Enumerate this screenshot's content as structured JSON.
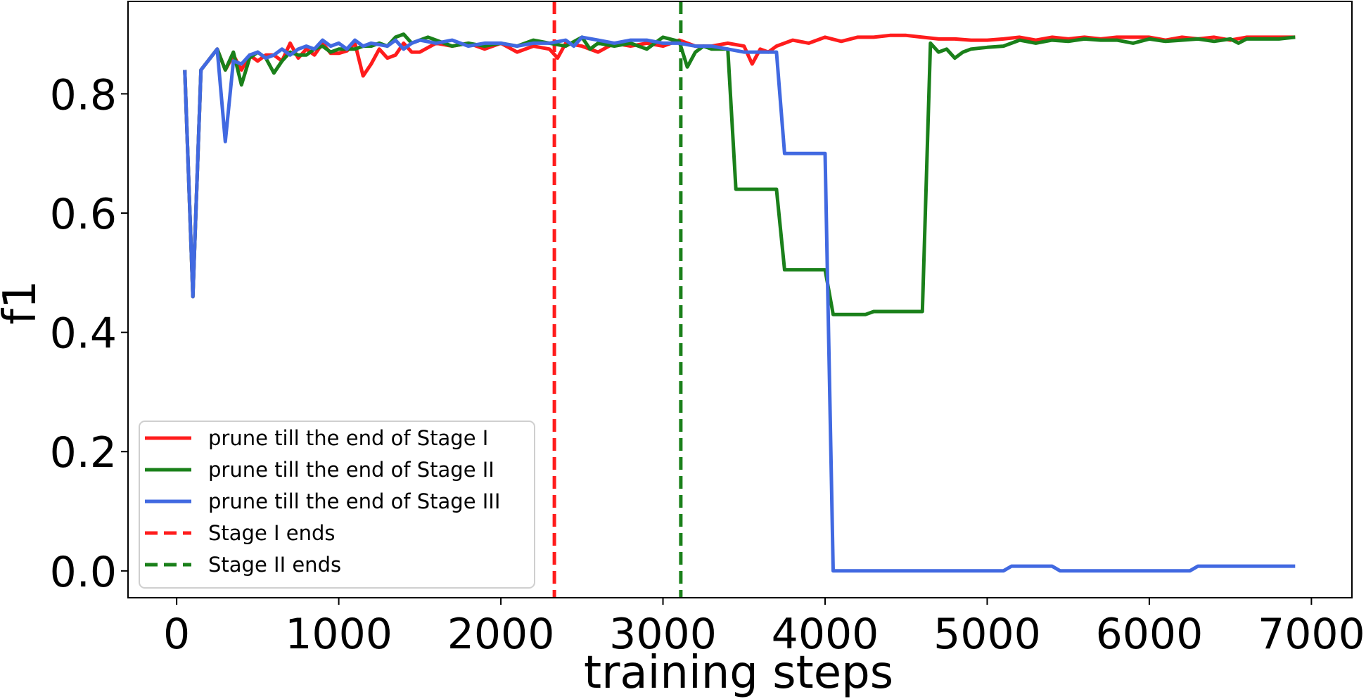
{
  "chart_data": {
    "type": "line",
    "xlabel": "training steps",
    "ylabel": "f1",
    "xlim": [
      -300,
      7250
    ],
    "ylim": [
      -0.045,
      0.955
    ],
    "xticks": [
      0,
      1000,
      2000,
      3000,
      4000,
      5000,
      6000,
      7000
    ],
    "xtick_labels": [
      "0",
      "1000",
      "2000",
      "3000",
      "4000",
      "5000",
      "6000",
      "7000"
    ],
    "yticks": [
      0.0,
      0.2,
      0.4,
      0.6,
      0.8
    ],
    "ytick_labels": [
      "0.0",
      "0.2",
      "0.4",
      "0.6",
      "0.8"
    ],
    "grid": false,
    "legend_position": "lower-left",
    "series": [
      {
        "name": "prune till the end of Stage I",
        "color": "#ff1c1c",
        "style": "solid",
        "points": [
          [
            50,
            0.84
          ],
          [
            100,
            0.46
          ],
          [
            150,
            0.84
          ],
          [
            250,
            0.875
          ],
          [
            300,
            0.84
          ],
          [
            350,
            0.865
          ],
          [
            400,
            0.84
          ],
          [
            450,
            0.865
          ],
          [
            500,
            0.855
          ],
          [
            550,
            0.865
          ],
          [
            600,
            0.865
          ],
          [
            650,
            0.855
          ],
          [
            700,
            0.885
          ],
          [
            750,
            0.86
          ],
          [
            800,
            0.875
          ],
          [
            850,
            0.865
          ],
          [
            900,
            0.885
          ],
          [
            950,
            0.868
          ],
          [
            1000,
            0.868
          ],
          [
            1050,
            0.872
          ],
          [
            1100,
            0.885
          ],
          [
            1150,
            0.83
          ],
          [
            1200,
            0.85
          ],
          [
            1250,
            0.875
          ],
          [
            1300,
            0.86
          ],
          [
            1350,
            0.865
          ],
          [
            1400,
            0.885
          ],
          [
            1450,
            0.87
          ],
          [
            1500,
            0.87
          ],
          [
            1600,
            0.885
          ],
          [
            1700,
            0.88
          ],
          [
            1800,
            0.885
          ],
          [
            1900,
            0.875
          ],
          [
            2000,
            0.885
          ],
          [
            2100,
            0.87
          ],
          [
            2200,
            0.88
          ],
          [
            2300,
            0.875
          ],
          [
            2350,
            0.86
          ],
          [
            2400,
            0.885
          ],
          [
            2500,
            0.88
          ],
          [
            2600,
            0.87
          ],
          [
            2700,
            0.885
          ],
          [
            2800,
            0.88
          ],
          [
            2900,
            0.885
          ],
          [
            3000,
            0.88
          ],
          [
            3100,
            0.89
          ],
          [
            3200,
            0.88
          ],
          [
            3300,
            0.88
          ],
          [
            3400,
            0.885
          ],
          [
            3500,
            0.88
          ],
          [
            3550,
            0.85
          ],
          [
            3600,
            0.875
          ],
          [
            3650,
            0.87
          ],
          [
            3700,
            0.88
          ],
          [
            3800,
            0.89
          ],
          [
            3900,
            0.885
          ],
          [
            4000,
            0.895
          ],
          [
            4100,
            0.888
          ],
          [
            4200,
            0.895
          ],
          [
            4300,
            0.895
          ],
          [
            4400,
            0.898
          ],
          [
            4500,
            0.898
          ],
          [
            4600,
            0.895
          ],
          [
            4700,
            0.892
          ],
          [
            4800,
            0.892
          ],
          [
            4900,
            0.89
          ],
          [
            5000,
            0.89
          ],
          [
            5100,
            0.892
          ],
          [
            5200,
            0.895
          ],
          [
            5300,
            0.89
          ],
          [
            5400,
            0.895
          ],
          [
            5500,
            0.892
          ],
          [
            5600,
            0.895
          ],
          [
            5700,
            0.892
          ],
          [
            5800,
            0.895
          ],
          [
            5900,
            0.895
          ],
          [
            6000,
            0.895
          ],
          [
            6100,
            0.89
          ],
          [
            6200,
            0.895
          ],
          [
            6300,
            0.892
          ],
          [
            6400,
            0.895
          ],
          [
            6500,
            0.89
          ],
          [
            6600,
            0.895
          ],
          [
            6700,
            0.895
          ],
          [
            6800,
            0.895
          ],
          [
            6900,
            0.895
          ]
        ]
      },
      {
        "name": "prune till the end of Stage II",
        "color": "#1a801a",
        "style": "solid",
        "points": [
          [
            50,
            0.84
          ],
          [
            100,
            0.46
          ],
          [
            150,
            0.84
          ],
          [
            250,
            0.875
          ],
          [
            300,
            0.84
          ],
          [
            350,
            0.87
          ],
          [
            400,
            0.815
          ],
          [
            450,
            0.86
          ],
          [
            500,
            0.87
          ],
          [
            550,
            0.86
          ],
          [
            600,
            0.835
          ],
          [
            650,
            0.855
          ],
          [
            700,
            0.87
          ],
          [
            750,
            0.865
          ],
          [
            800,
            0.865
          ],
          [
            850,
            0.875
          ],
          [
            900,
            0.88
          ],
          [
            950,
            0.87
          ],
          [
            1000,
            0.875
          ],
          [
            1100,
            0.875
          ],
          [
            1150,
            0.88
          ],
          [
            1200,
            0.88
          ],
          [
            1250,
            0.885
          ],
          [
            1300,
            0.88
          ],
          [
            1350,
            0.895
          ],
          [
            1400,
            0.9
          ],
          [
            1450,
            0.885
          ],
          [
            1500,
            0.89
          ],
          [
            1550,
            0.895
          ],
          [
            1600,
            0.89
          ],
          [
            1700,
            0.88
          ],
          [
            1800,
            0.885
          ],
          [
            1900,
            0.88
          ],
          [
            2000,
            0.885
          ],
          [
            2100,
            0.88
          ],
          [
            2200,
            0.89
          ],
          [
            2300,
            0.885
          ],
          [
            2400,
            0.88
          ],
          [
            2500,
            0.895
          ],
          [
            2550,
            0.875
          ],
          [
            2600,
            0.885
          ],
          [
            2700,
            0.88
          ],
          [
            2800,
            0.885
          ],
          [
            2900,
            0.875
          ],
          [
            3000,
            0.895
          ],
          [
            3100,
            0.888
          ],
          [
            3150,
            0.845
          ],
          [
            3200,
            0.87
          ],
          [
            3250,
            0.88
          ],
          [
            3300,
            0.875
          ],
          [
            3400,
            0.875
          ],
          [
            3450,
            0.64
          ],
          [
            3700,
            0.64
          ],
          [
            3750,
            0.505
          ],
          [
            4000,
            0.505
          ],
          [
            4050,
            0.43
          ],
          [
            4250,
            0.43
          ],
          [
            4300,
            0.435
          ],
          [
            4600,
            0.435
          ],
          [
            4650,
            0.885
          ],
          [
            4700,
            0.87
          ],
          [
            4750,
            0.875
          ],
          [
            4800,
            0.86
          ],
          [
            4850,
            0.87
          ],
          [
            4900,
            0.875
          ],
          [
            5000,
            0.878
          ],
          [
            5100,
            0.88
          ],
          [
            5200,
            0.89
          ],
          [
            5300,
            0.885
          ],
          [
            5400,
            0.89
          ],
          [
            5500,
            0.888
          ],
          [
            5600,
            0.892
          ],
          [
            5700,
            0.89
          ],
          [
            5800,
            0.89
          ],
          [
            5900,
            0.885
          ],
          [
            6000,
            0.892
          ],
          [
            6100,
            0.888
          ],
          [
            6200,
            0.89
          ],
          [
            6300,
            0.892
          ],
          [
            6400,
            0.888
          ],
          [
            6500,
            0.892
          ],
          [
            6550,
            0.885
          ],
          [
            6600,
            0.892
          ],
          [
            6700,
            0.892
          ],
          [
            6800,
            0.892
          ],
          [
            6900,
            0.895
          ]
        ]
      },
      {
        "name": "prune till the end of Stage III",
        "color": "#4169e1",
        "style": "solid",
        "points": [
          [
            50,
            0.84
          ],
          [
            100,
            0.46
          ],
          [
            150,
            0.84
          ],
          [
            250,
            0.875
          ],
          [
            300,
            0.72
          ],
          [
            350,
            0.855
          ],
          [
            400,
            0.85
          ],
          [
            450,
            0.865
          ],
          [
            500,
            0.87
          ],
          [
            550,
            0.86
          ],
          [
            600,
            0.865
          ],
          [
            650,
            0.875
          ],
          [
            700,
            0.865
          ],
          [
            750,
            0.875
          ],
          [
            800,
            0.88
          ],
          [
            850,
            0.875
          ],
          [
            900,
            0.89
          ],
          [
            950,
            0.88
          ],
          [
            1000,
            0.885
          ],
          [
            1050,
            0.875
          ],
          [
            1100,
            0.89
          ],
          [
            1150,
            0.88
          ],
          [
            1200,
            0.885
          ],
          [
            1300,
            0.88
          ],
          [
            1350,
            0.89
          ],
          [
            1400,
            0.875
          ],
          [
            1450,
            0.885
          ],
          [
            1500,
            0.89
          ],
          [
            1600,
            0.885
          ],
          [
            1700,
            0.89
          ],
          [
            1800,
            0.88
          ],
          [
            1900,
            0.885
          ],
          [
            2000,
            0.885
          ],
          [
            2100,
            0.88
          ],
          [
            2200,
            0.885
          ],
          [
            2300,
            0.885
          ],
          [
            2400,
            0.89
          ],
          [
            2450,
            0.88
          ],
          [
            2500,
            0.895
          ],
          [
            2600,
            0.89
          ],
          [
            2700,
            0.885
          ],
          [
            2800,
            0.89
          ],
          [
            2900,
            0.89
          ],
          [
            3000,
            0.885
          ],
          [
            3100,
            0.885
          ],
          [
            3200,
            0.88
          ],
          [
            3300,
            0.88
          ],
          [
            3400,
            0.875
          ],
          [
            3500,
            0.87
          ],
          [
            3700,
            0.87
          ],
          [
            3750,
            0.7
          ],
          [
            4000,
            0.7
          ],
          [
            4050,
            0.0
          ],
          [
            5100,
            0.0
          ],
          [
            5150,
            0.008
          ],
          [
            5400,
            0.008
          ],
          [
            5450,
            0.0
          ],
          [
            6250,
            0.0
          ],
          [
            6300,
            0.008
          ],
          [
            6900,
            0.008
          ]
        ]
      },
      {
        "name": "Stage I ends",
        "color": "#ff1c1c",
        "style": "dashed",
        "vline_x": 2330
      },
      {
        "name": "Stage II ends",
        "color": "#1a801a",
        "style": "dashed",
        "vline_x": 3110
      }
    ]
  }
}
